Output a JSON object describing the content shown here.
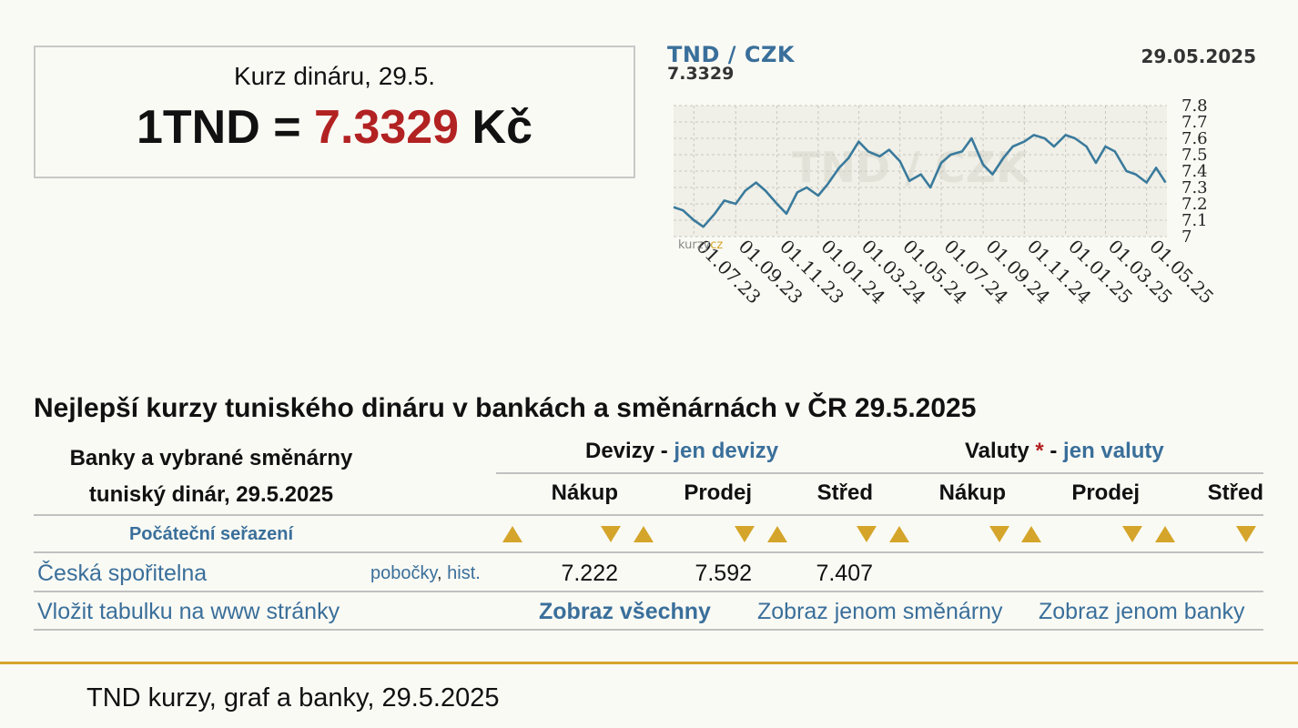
{
  "rate_box": {
    "caption": "Kurz dináru, 29.5.",
    "prefix": "1TND = ",
    "value": "7.3329",
    "unit": " Kč"
  },
  "chart": {
    "pair": "TND / CZK",
    "last_value": "7.3329",
    "date": "29.05.2025",
    "watermark": "TND / CZK",
    "brand": "kurzy",
    "brand_suffix": "cz",
    "line_color": "#3a7a9c"
  },
  "chart_data": {
    "type": "line",
    "title": "TND / CZK",
    "x_tick_labels": [
      "01.07.23",
      "01.09.23",
      "01.11.23",
      "01.01.24",
      "01.03.24",
      "01.05.24",
      "01.07.24",
      "01.09.24",
      "01.11.24",
      "01.01.25",
      "01.03.25",
      "01.05.25"
    ],
    "y_tick_labels": [
      "7.8",
      "7.7",
      "7.6",
      "7.5",
      "7.4",
      "7.3",
      "7.2",
      "7.1",
      "7"
    ],
    "ylim": [
      7.0,
      7.8
    ],
    "grid": true,
    "series": [
      {
        "x": [
          "2023-06-01",
          "2023-06-15",
          "2023-07-01",
          "2023-07-15",
          "2023-08-01",
          "2023-08-15",
          "2023-09-01",
          "2023-09-15",
          "2023-10-01",
          "2023-10-15",
          "2023-11-01",
          "2023-11-15",
          "2023-12-01",
          "2023-12-15",
          "2024-01-01",
          "2024-01-15",
          "2024-02-01",
          "2024-02-15",
          "2024-03-01",
          "2024-03-15",
          "2024-04-01",
          "2024-04-15",
          "2024-05-01",
          "2024-05-15",
          "2024-06-01",
          "2024-06-15",
          "2024-07-01",
          "2024-07-15",
          "2024-08-01",
          "2024-08-15",
          "2024-09-01",
          "2024-09-15",
          "2024-10-01",
          "2024-10-15",
          "2024-11-01",
          "2024-11-15",
          "2024-12-01",
          "2024-12-15",
          "2025-01-01",
          "2025-01-15",
          "2025-02-01",
          "2025-02-15",
          "2025-03-01",
          "2025-03-15",
          "2025-04-01",
          "2025-04-15",
          "2025-05-01",
          "2025-05-15",
          "2025-05-29"
        ],
        "values": [
          7.18,
          7.16,
          7.1,
          7.06,
          7.14,
          7.22,
          7.2,
          7.28,
          7.33,
          7.28,
          7.2,
          7.14,
          7.27,
          7.3,
          7.25,
          7.32,
          7.42,
          7.48,
          7.58,
          7.52,
          7.49,
          7.53,
          7.46,
          7.34,
          7.38,
          7.3,
          7.45,
          7.5,
          7.52,
          7.6,
          7.44,
          7.38,
          7.48,
          7.55,
          7.58,
          7.62,
          7.6,
          7.55,
          7.62,
          7.6,
          7.55,
          7.45,
          7.55,
          7.52,
          7.4,
          7.38,
          7.33,
          7.42,
          7.33
        ]
      }
    ]
  },
  "section_title": "Nejlepší kurzy tuniského dináru v bankách a směnárnách v ČR 29.5.2025",
  "table": {
    "banks_head_line1": "Banky a vybrané směnárny",
    "banks_head_line2": "tuniský dinár, 29.5.2025",
    "devizy": {
      "label": "Devizy",
      "dash": " - ",
      "link": "jen devizy"
    },
    "valuty": {
      "label": "Valuty",
      "star": " *",
      "dash": " - ",
      "link": "jen valuty"
    },
    "columns": [
      "Nákup",
      "Prodej",
      "Střed",
      "Nákup",
      "Prodej",
      "Střed"
    ],
    "sort_link": "Počáteční seřazení",
    "rows": [
      {
        "bank": "Česká spořitelna",
        "link1": "pobočky",
        "link_sep": ",",
        "link2": "hist.",
        "values": [
          "7.222",
          "7.592",
          "7.407",
          "",
          "",
          ""
        ]
      }
    ],
    "footer_links": {
      "embed": "Vložit tabulku na www stránky",
      "show_all": "Zobraz všechny",
      "show_exchanges": "Zobraz jenom směnárny",
      "show_banks": "Zobraz jenom banky"
    }
  },
  "footer_text": "TND kurzy, graf a banky, 29.5.2025",
  "colors": {
    "accent": "#b22222",
    "link": "#3a6f9a",
    "gold": "#d4a52a"
  }
}
